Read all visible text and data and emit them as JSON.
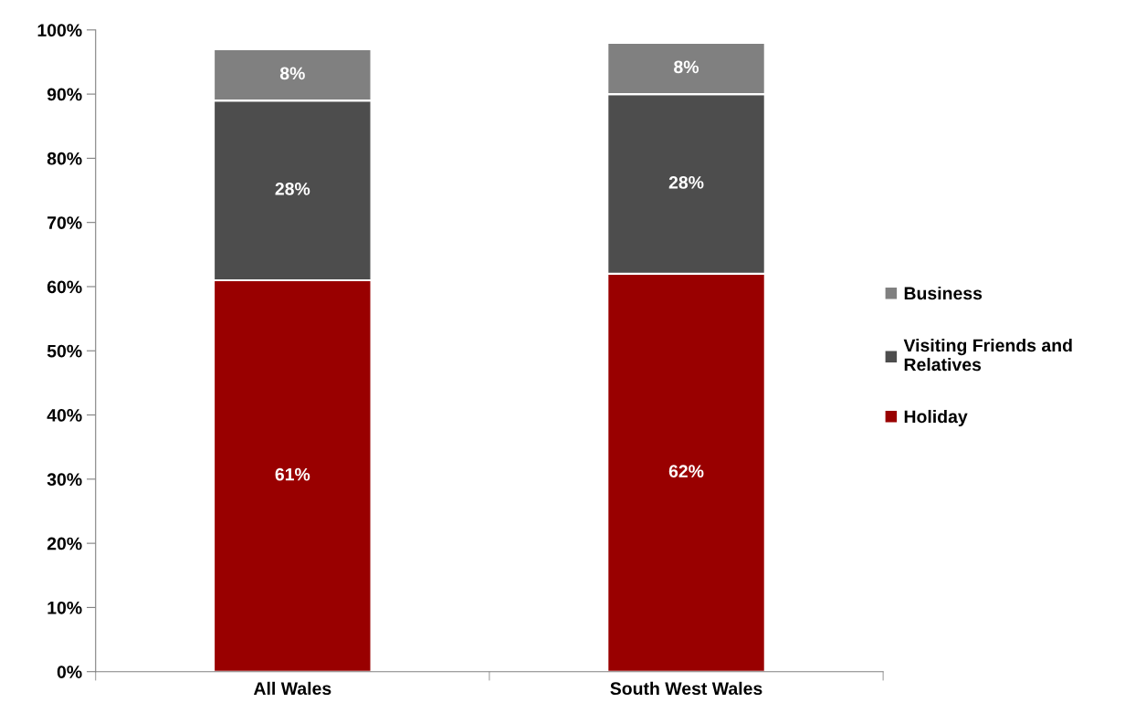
{
  "chart_data": {
    "type": "bar",
    "stacked": true,
    "categories": [
      "All Wales",
      "South West Wales"
    ],
    "series": [
      {
        "name": "Holiday",
        "color": "#990000",
        "values": [
          61,
          62
        ],
        "value_labels": [
          "61%",
          "62%"
        ]
      },
      {
        "name": "Visiting Friends and Relatives",
        "color": "#4d4d4d",
        "values": [
          28,
          28
        ],
        "value_labels": [
          "28%",
          "28%"
        ]
      },
      {
        "name": "Business",
        "color": "#808080",
        "values": [
          8,
          8
        ],
        "value_labels": [
          "8%",
          "8%"
        ]
      }
    ],
    "ylim": [
      0,
      100
    ],
    "yticks": [
      {
        "value": 0,
        "label": "0%"
      },
      {
        "value": 10,
        "label": "10%"
      },
      {
        "value": 20,
        "label": "20%"
      },
      {
        "value": 30,
        "label": "30%"
      },
      {
        "value": 40,
        "label": "40%"
      },
      {
        "value": 50,
        "label": "50%"
      },
      {
        "value": 60,
        "label": "60%"
      },
      {
        "value": 70,
        "label": "70%"
      },
      {
        "value": 80,
        "label": "80%"
      },
      {
        "value": 90,
        "label": "90%"
      },
      {
        "value": 100,
        "label": "100%"
      }
    ],
    "grid": false,
    "legend": "right"
  }
}
